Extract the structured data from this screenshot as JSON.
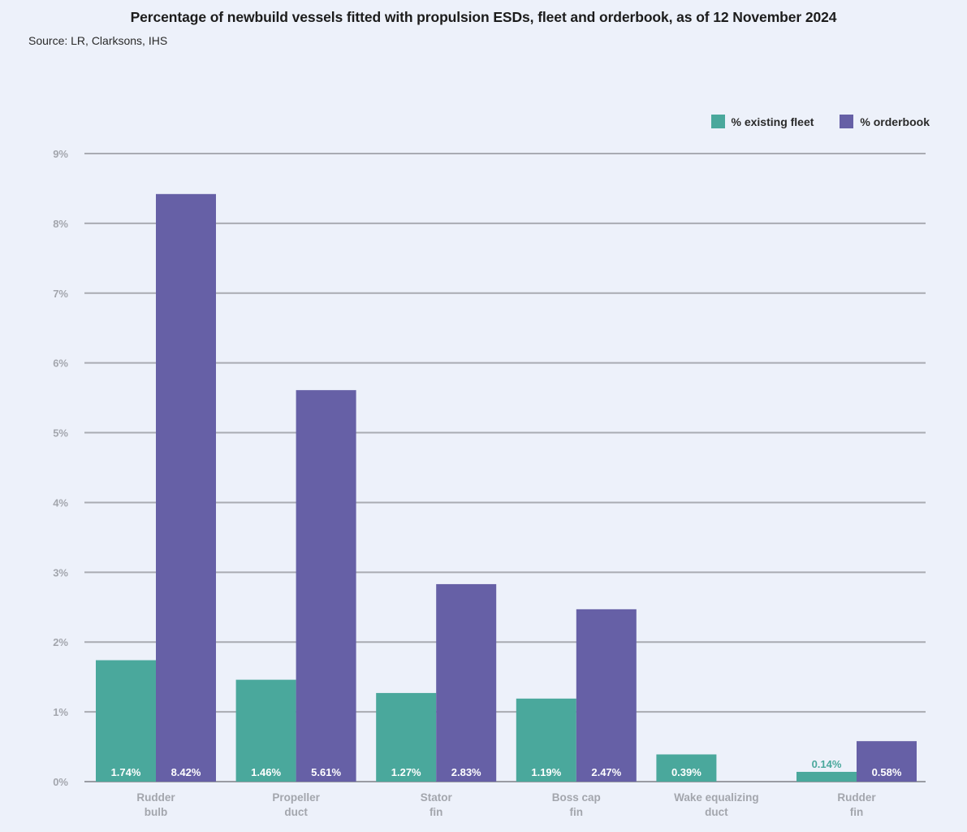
{
  "chart_data": {
    "type": "bar",
    "title": "Percentage of newbuild vessels fitted with propulsion ESDs, fleet and orderbook, as of 12 November 2024",
    "subtitle": "Source: LR, Clarksons, IHS",
    "xlabel": "",
    "ylabel": "",
    "ylim": [
      0,
      9
    ],
    "yticks": [
      0,
      1,
      2,
      3,
      4,
      5,
      6,
      7,
      8,
      9
    ],
    "ytick_labels": [
      "0%",
      "1%",
      "2%",
      "3%",
      "4%",
      "5%",
      "6%",
      "7%",
      "8%",
      "9%"
    ],
    "grid": true,
    "legend_position": "top-right",
    "categories": [
      [
        "Rudder",
        "bulb"
      ],
      [
        "Propeller",
        "duct"
      ],
      [
        "Stator",
        "fin"
      ],
      [
        "Boss cap",
        "fin"
      ],
      [
        "Wake equalizing",
        "duct"
      ],
      [
        "Rudder",
        "fin"
      ]
    ],
    "series": [
      {
        "name": "% existing fleet",
        "color": "#4aa89c",
        "values": [
          1.74,
          1.46,
          1.27,
          1.19,
          0.39,
          0.14
        ],
        "labels": [
          "1.74%",
          "1.46%",
          "1.27%",
          "1.19%",
          "0.39%",
          "0.14%"
        ]
      },
      {
        "name": "% orderbook",
        "color": "#6660a6",
        "values": [
          8.42,
          5.61,
          2.83,
          2.47,
          null,
          0.58
        ],
        "labels": [
          "8.42%",
          "5.61%",
          "2.83%",
          "2.47%",
          null,
          "0.58%"
        ]
      }
    ]
  }
}
